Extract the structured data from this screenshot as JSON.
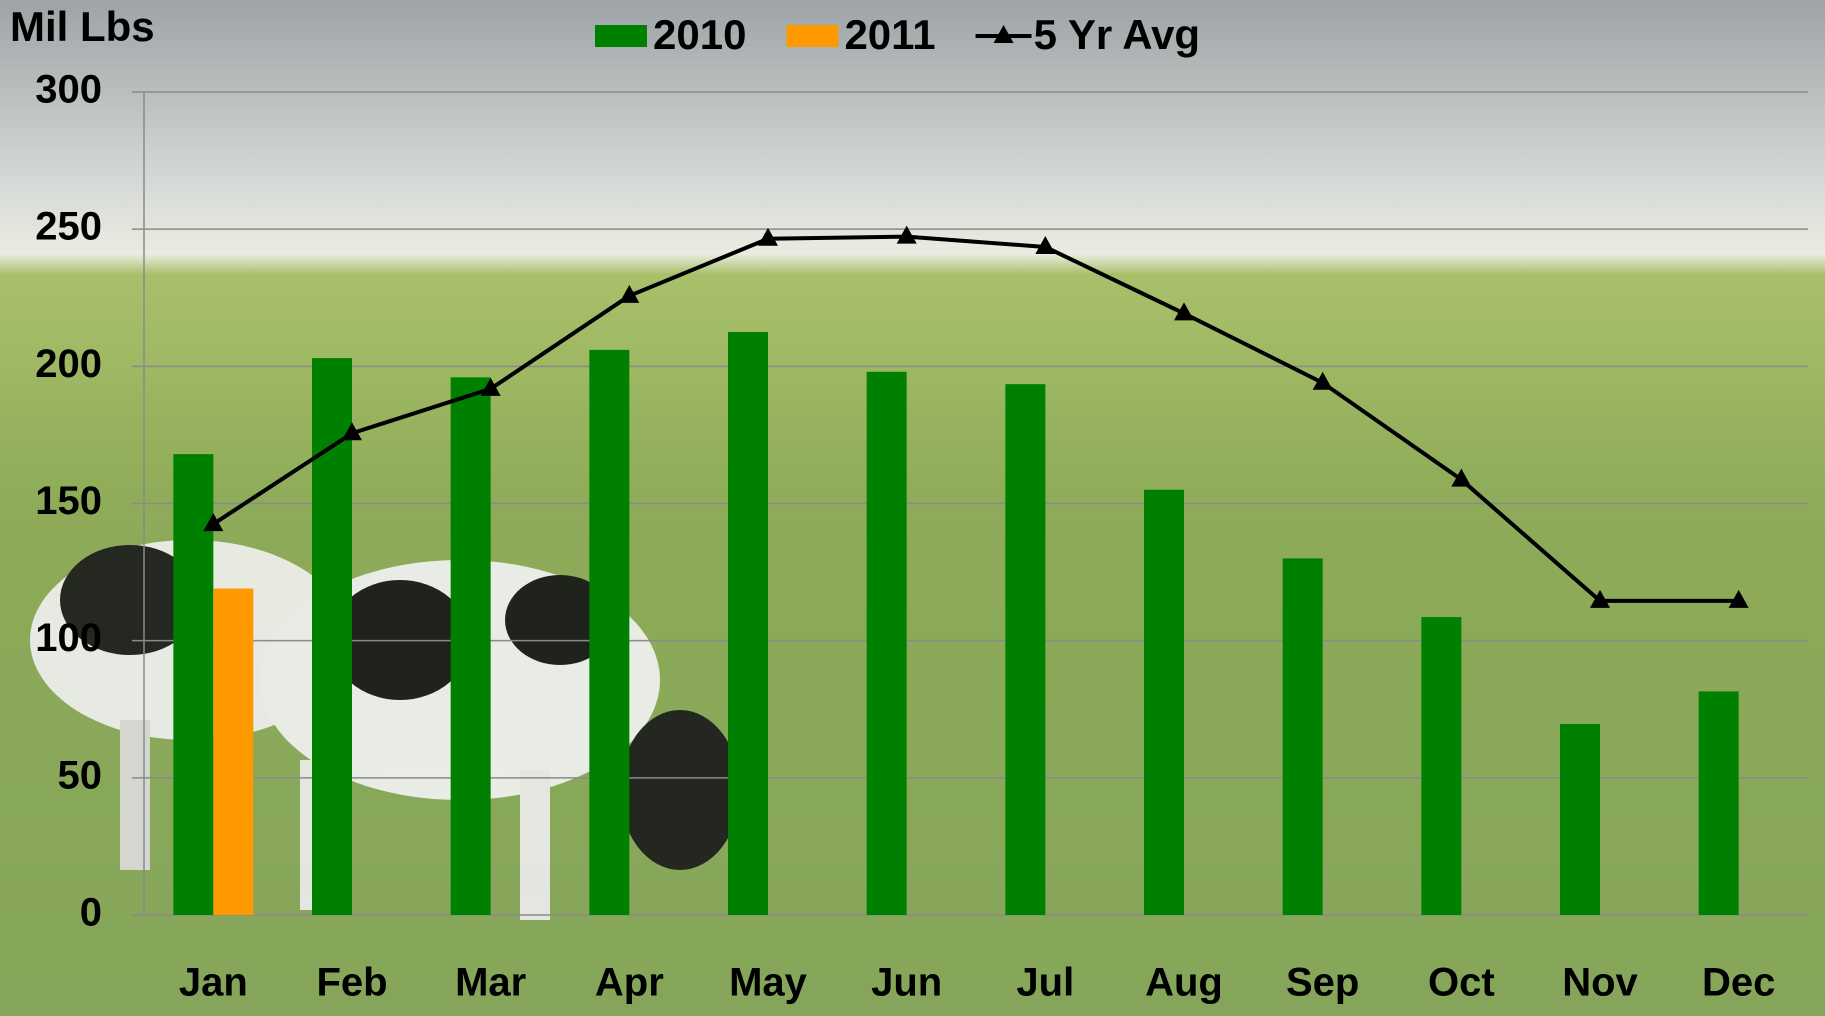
{
  "chart_data": {
    "type": "bar",
    "y_label": "Mil Lbs",
    "categories": [
      "Jan",
      "Feb",
      "Mar",
      "Apr",
      "May",
      "Jun",
      "Jul",
      "Aug",
      "Sep",
      "Oct",
      "Nov",
      "Dec"
    ],
    "series": [
      {
        "name": "2010",
        "type": "bar",
        "color": "#008000",
        "values": [
          168,
          203,
          196,
          206,
          212.5,
          198,
          193.5,
          155,
          130,
          108.6,
          69.6,
          81.5
        ]
      },
      {
        "name": "2011",
        "type": "bar",
        "color": "#ff9900",
        "values": [
          119,
          null,
          null,
          null,
          null,
          null,
          null,
          null,
          null,
          null,
          null,
          null
        ]
      },
      {
        "name": "5 Yr Avg",
        "type": "line",
        "color": "#000000",
        "values": [
          142.5,
          175.6,
          191.8,
          225.7,
          246.5,
          247.3,
          243.5,
          219.3,
          194,
          158.7,
          114.5,
          114.5
        ]
      }
    ],
    "ylim": [
      0,
      300
    ],
    "yticks": [
      0,
      50,
      100,
      150,
      200,
      250,
      300
    ],
    "grid": true
  }
}
